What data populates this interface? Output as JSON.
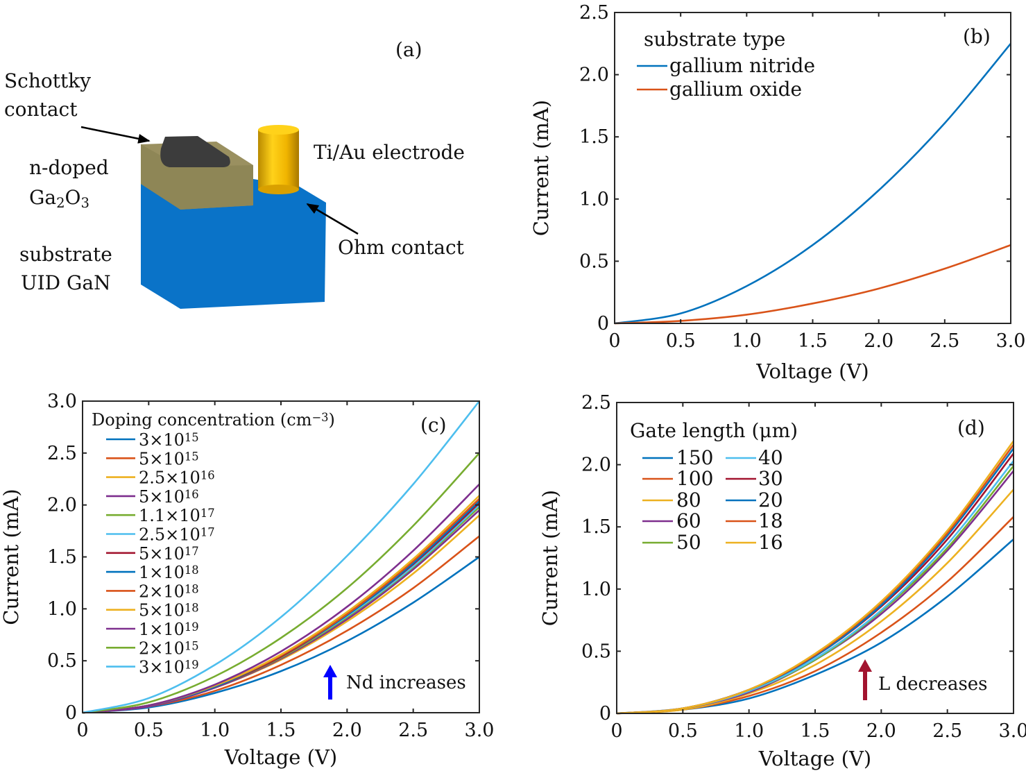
{
  "panel_a": {
    "label": "(a)",
    "schottky_label_1": "Schottky",
    "schottky_label_2": "contact",
    "ndoped_label": "n-doped",
    "ga2o3_label": "Ga_2O_3",
    "substrate_label_1": "substrate",
    "substrate_label_2": "UID GaN",
    "electrode_label": "Ti/Au electrode",
    "ohm_label": "Ohm contact",
    "colors": {
      "substrate": "#0a73c8",
      "ga2o3": "#9a9060",
      "schottky": "#3c3c3c",
      "electrode": "#f0b400"
    }
  },
  "chart_data": [
    {
      "id": "b",
      "type": "line",
      "panel_label": "(b)",
      "xlabel": "Voltage (V)",
      "ylabel": "Current (mA)",
      "xlim": [
        0,
        3.0
      ],
      "ylim": [
        0,
        2.5
      ],
      "xticks": [
        "0",
        "0.5",
        "1.0",
        "1.5",
        "2.0",
        "2.5",
        "3.0"
      ],
      "yticks": [
        "0",
        "0.5",
        "1.0",
        "1.5",
        "2.0",
        "2.5"
      ],
      "legend_title": "substrate type",
      "legend_placement": "top-left",
      "x": [
        0,
        0.5,
        1.0,
        1.5,
        2.0,
        2.5,
        3.0
      ],
      "series": [
        {
          "name": "gallium nitride",
          "color": "#0072BD",
          "values": [
            0,
            0.08,
            0.3,
            0.63,
            1.07,
            1.61,
            2.25
          ]
        },
        {
          "name": "gallium oxide",
          "color": "#D95319",
          "values": [
            0,
            0.02,
            0.07,
            0.16,
            0.28,
            0.44,
            0.63
          ]
        }
      ]
    },
    {
      "id": "c",
      "type": "line",
      "panel_label": "(c)",
      "xlabel": "Voltage (V)",
      "ylabel": "Current (mA)",
      "xlim": [
        0,
        3.0
      ],
      "ylim": [
        0,
        3.0
      ],
      "xticks": [
        "0",
        "0.5",
        "1.0",
        "1.5",
        "2.0",
        "2.5",
        "3.0"
      ],
      "yticks": [
        "0",
        "0.5",
        "1.0",
        "1.5",
        "2.0",
        "2.5",
        "3.0"
      ],
      "legend_title": "Doping concentration (cm^−3)",
      "legend_placement": "top-left",
      "annotation": {
        "text": "Nd increases",
        "arrow_color": "#0000ff"
      },
      "x": [
        0,
        0.5,
        1.0,
        1.5,
        2.0,
        2.5,
        3.0
      ],
      "series": [
        {
          "name": "3×10^15",
          "color": "#0072BD",
          "values": [
            0,
            0.05,
            0.19,
            0.4,
            0.69,
            1.06,
            1.5
          ]
        },
        {
          "name": "5×10^15",
          "color": "#D95319",
          "values": [
            0,
            0.06,
            0.21,
            0.46,
            0.79,
            1.2,
            1.7
          ]
        },
        {
          "name": "2.5×10^16",
          "color": "#EDB120",
          "values": [
            0,
            0.06,
            0.24,
            0.51,
            0.88,
            1.34,
            1.9
          ]
        },
        {
          "name": "5×10^16",
          "color": "#7E2F8E",
          "values": [
            0,
            0.06,
            0.24,
            0.52,
            0.9,
            1.38,
            1.95
          ]
        },
        {
          "name": "1.1×10^17",
          "color": "#77AC30",
          "values": [
            0,
            0.07,
            0.25,
            0.53,
            0.92,
            1.4,
            1.98
          ]
        },
        {
          "name": "2.5×10^17",
          "color": "#4DBEEE",
          "values": [
            0,
            0.07,
            0.25,
            0.54,
            0.93,
            1.41,
            2.0
          ]
        },
        {
          "name": "5×10^17",
          "color": "#A2142F",
          "values": [
            0,
            0.07,
            0.25,
            0.54,
            0.94,
            1.43,
            2.02
          ]
        },
        {
          "name": "1×10^18",
          "color": "#0072BD",
          "values": [
            0,
            0.07,
            0.25,
            0.55,
            0.94,
            1.44,
            2.04
          ]
        },
        {
          "name": "2×10^18",
          "color": "#D95319",
          "values": [
            0,
            0.07,
            0.26,
            0.55,
            0.95,
            1.46,
            2.06
          ]
        },
        {
          "name": "5×10^18",
          "color": "#EDB120",
          "values": [
            0,
            0.07,
            0.26,
            0.56,
            0.97,
            1.48,
            2.09
          ]
        },
        {
          "name": "1×10^19",
          "color": "#7E2F8E",
          "values": [
            0,
            0.07,
            0.27,
            0.59,
            1.02,
            1.56,
            2.2
          ]
        },
        {
          "name": "2×10^15",
          "color": "#77AC30",
          "values": [
            0,
            0.1,
            0.35,
            0.72,
            1.2,
            1.8,
            2.5
          ]
        },
        {
          "name": "3×10^19",
          "color": "#4DBEEE",
          "values": [
            0,
            0.14,
            0.46,
            0.92,
            1.51,
            2.2,
            3.0
          ]
        }
      ]
    },
    {
      "id": "d",
      "type": "line",
      "panel_label": "(d)",
      "xlabel": "Voltage (V)",
      "ylabel": "Current (mA)",
      "xlim": [
        0,
        3.0
      ],
      "ylim": [
        0,
        2.5
      ],
      "xticks": [
        "0",
        "0.5",
        "1.0",
        "1.5",
        "2.0",
        "2.5",
        "3.0"
      ],
      "yticks": [
        "0",
        "0.5",
        "1.0",
        "1.5",
        "2.0",
        "2.5"
      ],
      "legend_title": "Gate length (μm)",
      "legend_placement": "top-left",
      "annotation": {
        "text": "L decreases",
        "arrow_color": "#a2142f"
      },
      "x": [
        0,
        0.5,
        1.0,
        1.5,
        2.0,
        2.5,
        3.0
      ],
      "series": [
        {
          "name": "150",
          "color": "#0072BD",
          "values": [
            0,
            0.03,
            0.12,
            0.31,
            0.57,
            0.94,
            1.4
          ]
        },
        {
          "name": "100",
          "color": "#D95319",
          "values": [
            0,
            0.03,
            0.14,
            0.34,
            0.65,
            1.06,
            1.58
          ]
        },
        {
          "name": "80",
          "color": "#EDB120",
          "values": [
            0,
            0.03,
            0.16,
            0.39,
            0.74,
            1.21,
            1.8
          ]
        },
        {
          "name": "60",
          "color": "#7E2F8E",
          "values": [
            0,
            0.04,
            0.17,
            0.43,
            0.8,
            1.31,
            1.95
          ]
        },
        {
          "name": "50",
          "color": "#77AC30",
          "values": [
            0,
            0.04,
            0.18,
            0.43,
            0.82,
            1.33,
            1.99
          ]
        },
        {
          "name": "40",
          "color": "#4DBEEE",
          "values": [
            0,
            0.04,
            0.18,
            0.44,
            0.83,
            1.36,
            2.03
          ]
        },
        {
          "name": "30",
          "color": "#A2142F",
          "values": [
            0,
            0.04,
            0.19,
            0.46,
            0.86,
            1.4,
            2.09
          ]
        },
        {
          "name": "20",
          "color": "#0072BD",
          "values": [
            0,
            0.04,
            0.19,
            0.46,
            0.87,
            1.43,
            2.13
          ]
        },
        {
          "name": "18",
          "color": "#D95319",
          "values": [
            0,
            0.04,
            0.19,
            0.47,
            0.89,
            1.45,
            2.16
          ]
        },
        {
          "name": "16",
          "color": "#EDB120",
          "values": [
            0,
            0.04,
            0.19,
            0.48,
            0.9,
            1.47,
            2.19
          ]
        }
      ]
    }
  ]
}
